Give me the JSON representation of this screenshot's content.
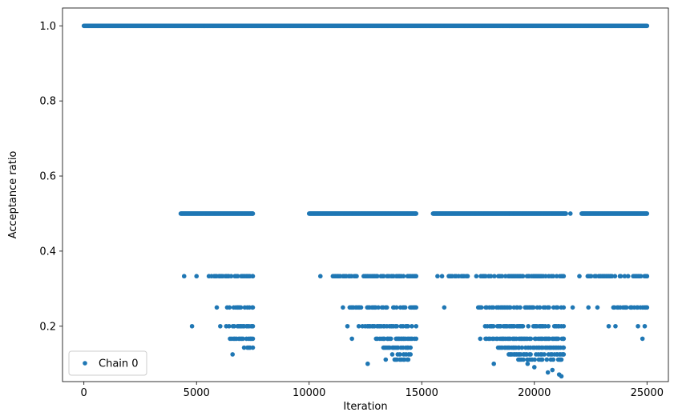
{
  "chart_data": {
    "type": "scatter",
    "title": "",
    "xlabel": "Iteration",
    "ylabel": "Acceptance ratio",
    "xlim": [
      -950,
      25950
    ],
    "ylim": [
      0.0525,
      1.0475
    ],
    "grid": false,
    "legend_placement": "lower-left",
    "xticks": [
      0,
      5000,
      10000,
      15000,
      20000,
      25000
    ],
    "xtick_labels": [
      "0",
      "5000",
      "10000",
      "15000",
      "20000",
      "25000"
    ],
    "yticks": [
      0.2,
      0.4,
      0.6,
      0.8,
      1.0
    ],
    "ytick_labels": [
      "0.2",
      "0.4",
      "0.6",
      "0.8",
      "1.0"
    ],
    "series": [
      {
        "name": "Chain 0",
        "color": "#1f77b4",
        "marker": "circle",
        "bands": [
          {
            "y": 1.0,
            "ranges": [
              [
                0,
                25000
              ]
            ]
          },
          {
            "y": 0.5,
            "ranges": [
              [
                4300,
                7500
              ],
              [
                10000,
                14750
              ],
              [
                15500,
                21400
              ],
              [
                22100,
                25000
              ]
            ]
          },
          {
            "y": 0.3333,
            "ranges": [
              [
                5500,
                7500
              ],
              [
                11000,
                14750
              ],
              [
                16200,
                21300
              ],
              [
                22300,
                25000
              ]
            ]
          },
          {
            "y": 0.25,
            "ranges": [
              [
                6200,
                7500
              ],
              [
                11800,
                14750
              ],
              [
                17500,
                21300
              ],
              [
                23500,
                25000
              ]
            ]
          },
          {
            "y": 0.2,
            "ranges": [
              [
                6000,
                7500
              ],
              [
                12200,
                14750
              ],
              [
                17800,
                21300
              ]
            ]
          },
          {
            "y": 0.1667,
            "ranges": [
              [
                6500,
                7500
              ],
              [
                12800,
                14750
              ],
              [
                17600,
                21300
              ]
            ]
          },
          {
            "y": 0.1429,
            "ranges": [
              [
                7100,
                7500
              ],
              [
                13300,
                14500
              ],
              [
                18400,
                21300
              ]
            ]
          },
          {
            "y": 0.125,
            "ranges": [
              [
                13700,
                14500
              ],
              [
                18800,
                21300
              ]
            ]
          },
          {
            "y": 0.1111,
            "ranges": [
              [
                13800,
                14400
              ],
              [
                19300,
                21200
              ]
            ]
          }
        ],
        "points": [
          {
            "x": 4450,
            "y": 0.3333
          },
          {
            "x": 5000,
            "y": 0.3333
          },
          {
            "x": 4800,
            "y": 0.2
          },
          {
            "x": 5900,
            "y": 0.25
          },
          {
            "x": 6600,
            "y": 0.125
          },
          {
            "x": 10500,
            "y": 0.3333
          },
          {
            "x": 11500,
            "y": 0.25
          },
          {
            "x": 11700,
            "y": 0.2
          },
          {
            "x": 11900,
            "y": 0.1667
          },
          {
            "x": 12600,
            "y": 0.1
          },
          {
            "x": 13400,
            "y": 0.1111
          },
          {
            "x": 15700,
            "y": 0.3333
          },
          {
            "x": 15900,
            "y": 0.3333
          },
          {
            "x": 16000,
            "y": 0.25
          },
          {
            "x": 18200,
            "y": 0.1
          },
          {
            "x": 19700,
            "y": 0.1
          },
          {
            "x": 20000,
            "y": 0.0909
          },
          {
            "x": 20200,
            "y": 0.1111
          },
          {
            "x": 20600,
            "y": 0.0769
          },
          {
            "x": 20800,
            "y": 0.0833
          },
          {
            "x": 21100,
            "y": 0.0714
          },
          {
            "x": 21200,
            "y": 0.0667
          },
          {
            "x": 21000,
            "y": 0.125
          },
          {
            "x": 21700,
            "y": 0.25
          },
          {
            "x": 21600,
            "y": 0.5
          },
          {
            "x": 22000,
            "y": 0.3333
          },
          {
            "x": 23600,
            "y": 0.2
          },
          {
            "x": 24300,
            "y": 0.25
          },
          {
            "x": 24600,
            "y": 0.2
          },
          {
            "x": 24800,
            "y": 0.1667
          },
          {
            "x": 24900,
            "y": 0.2
          },
          {
            "x": 22400,
            "y": 0.25
          },
          {
            "x": 22800,
            "y": 0.25
          },
          {
            "x": 23300,
            "y": 0.2
          }
        ]
      }
    ]
  }
}
